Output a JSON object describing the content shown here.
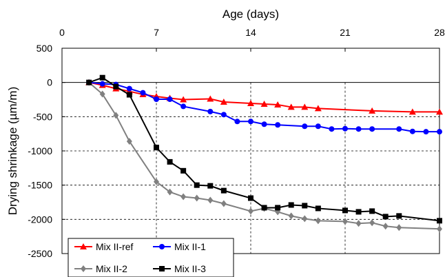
{
  "chart_data": {
    "type": "line",
    "xlabel": "Age (days)",
    "ylabel": "Drying shrinkage (µm/m)",
    "xlim": [
      0,
      28
    ],
    "ylim": [
      -2500,
      500
    ],
    "x_ticks": [
      0,
      7,
      14,
      21,
      28
    ],
    "y_ticks": [
      500,
      0,
      -500,
      -1000,
      -1500,
      -2000,
      -2500
    ],
    "x_axis_position": "top",
    "grid": "dashed at x ticks and y ticks below zero",
    "legend": "bottom-left",
    "series": [
      {
        "name": "Mix II-ref",
        "color": "#ff0000",
        "marker": "triangle",
        "x": [
          2,
          3,
          4,
          5,
          6,
          7,
          8,
          9,
          11,
          12,
          14,
          15,
          16,
          17,
          18,
          19,
          23,
          26,
          28
        ],
        "y": [
          0,
          -40,
          -90,
          -130,
          -175,
          -205,
          -230,
          -250,
          -240,
          -285,
          -305,
          -315,
          -325,
          -360,
          -360,
          -380,
          -415,
          -430,
          -430
        ]
      },
      {
        "name": "Mix II-1",
        "color": "#0000ff",
        "marker": "circle",
        "x": [
          2,
          3,
          4,
          5,
          6,
          7,
          8,
          9,
          11,
          12,
          13,
          14,
          15,
          16,
          18,
          19,
          20,
          21,
          22,
          23,
          25,
          26,
          27,
          28
        ],
        "y": [
          0,
          -20,
          -30,
          -90,
          -150,
          -245,
          -245,
          -350,
          -425,
          -470,
          -570,
          -570,
          -610,
          -620,
          -640,
          -640,
          -680,
          -675,
          -680,
          -680,
          -680,
          -715,
          -720,
          -720
        ]
      },
      {
        "name": "Mix II-2",
        "color": "#808080",
        "marker": "diamond",
        "x": [
          2,
          3,
          4,
          5,
          7,
          8,
          9,
          10,
          11,
          12,
          14,
          15,
          16,
          17,
          18,
          19,
          21,
          22,
          23,
          24,
          25,
          28
        ],
        "y": [
          0,
          -170,
          -480,
          -860,
          -1450,
          -1600,
          -1670,
          -1690,
          -1720,
          -1770,
          -1880,
          -1840,
          -1890,
          -1950,
          -1990,
          -2020,
          -2030,
          -2060,
          -2050,
          -2100,
          -2120,
          -2140
        ]
      },
      {
        "name": "Mix II-3",
        "color": "#000000",
        "marker": "square",
        "x": [
          2,
          3,
          4,
          5,
          7,
          8,
          9,
          10,
          11,
          12,
          14,
          15,
          16,
          17,
          18,
          19,
          21,
          22,
          23,
          24,
          25,
          28
        ],
        "y": [
          0,
          70,
          -60,
          -180,
          -950,
          -1160,
          -1290,
          -1500,
          -1510,
          -1580,
          -1690,
          -1830,
          -1830,
          -1790,
          -1800,
          -1840,
          -1870,
          -1890,
          -1880,
          -1960,
          -1950,
          -2020
        ]
      }
    ]
  }
}
